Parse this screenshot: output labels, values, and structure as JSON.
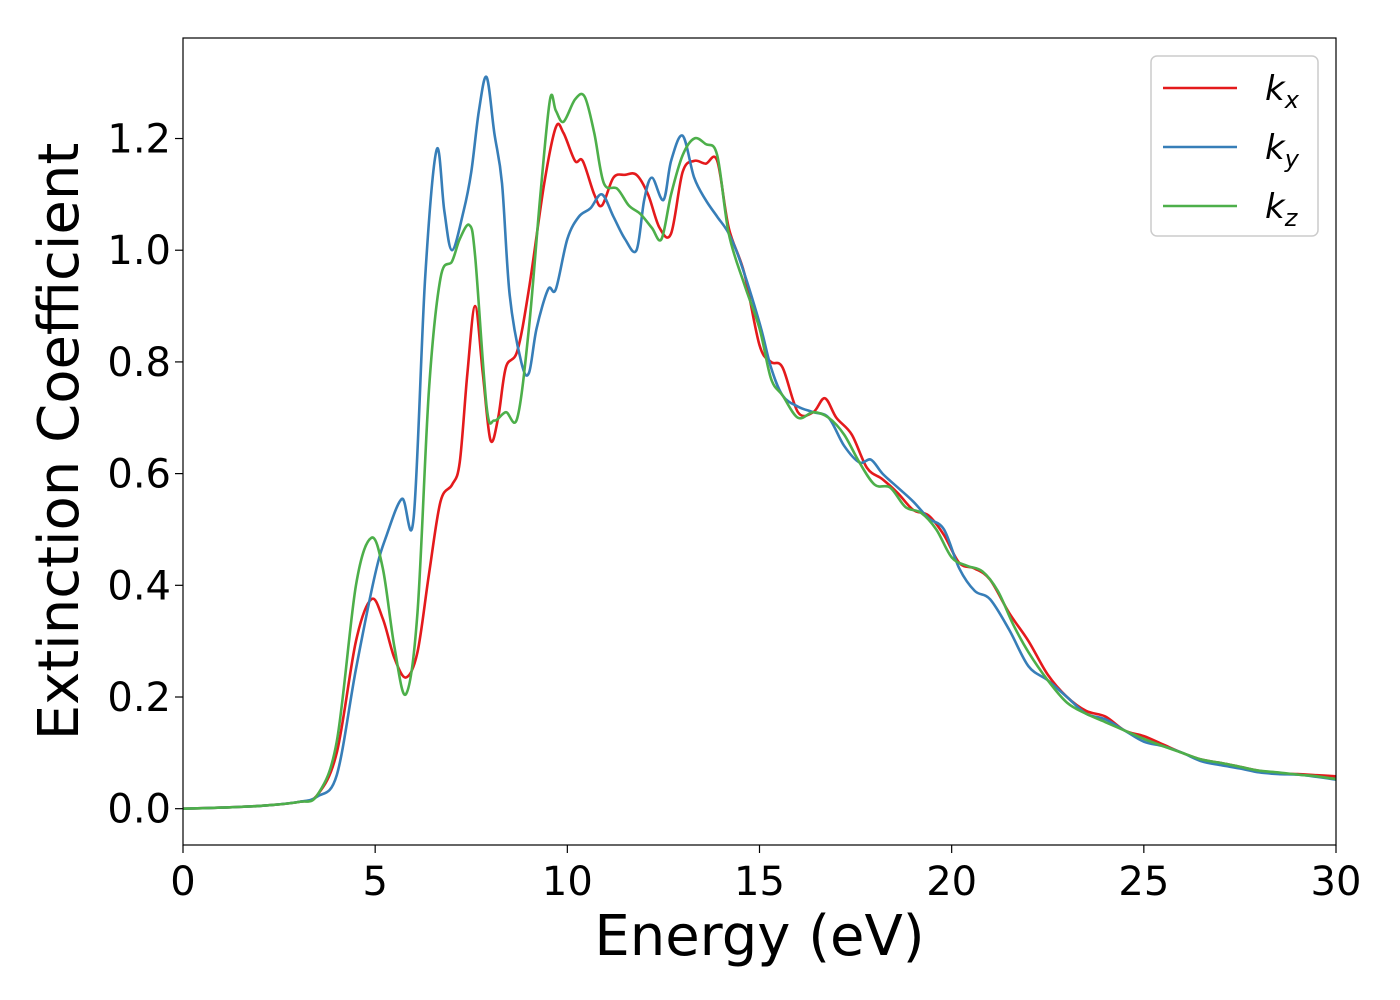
{
  "chart_data": {
    "type": "line",
    "title": "",
    "xlabel": "Energy (eV)",
    "ylabel": "Extinction Coefficient",
    "xlim": [
      0,
      30
    ],
    "ylim": [
      -0.065,
      1.38
    ],
    "xticks": [
      0,
      5,
      10,
      15,
      20,
      25,
      30
    ],
    "xtick_labels": [
      "0",
      "5",
      "10",
      "15",
      "20",
      "25",
      "30"
    ],
    "yticks": [
      0.0,
      0.2,
      0.4,
      0.6,
      0.8,
      1.0,
      1.2
    ],
    "ytick_labels": [
      "0.0",
      "0.2",
      "0.4",
      "0.6",
      "0.8",
      "1.0",
      "1.2"
    ],
    "grid": false,
    "legend": "top-right",
    "series": [
      {
        "name": "k_x",
        "label_main": "k",
        "label_sub": "x",
        "color": "#e41a1c",
        "points": [
          [
            0,
            0
          ],
          [
            1,
            0.002
          ],
          [
            2,
            0.005
          ],
          [
            3,
            0.012
          ],
          [
            3.5,
            0.025
          ],
          [
            4,
            0.1
          ],
          [
            4.5,
            0.3
          ],
          [
            4.9,
            0.375
          ],
          [
            5.2,
            0.34
          ],
          [
            5.5,
            0.27
          ],
          [
            5.8,
            0.235
          ],
          [
            6.1,
            0.28
          ],
          [
            6.4,
            0.42
          ],
          [
            6.7,
            0.55
          ],
          [
            7.0,
            0.58
          ],
          [
            7.2,
            0.62
          ],
          [
            7.4,
            0.78
          ],
          [
            7.6,
            0.9
          ],
          [
            7.8,
            0.78
          ],
          [
            8.0,
            0.66
          ],
          [
            8.2,
            0.7
          ],
          [
            8.4,
            0.79
          ],
          [
            8.7,
            0.82
          ],
          [
            9.0,
            0.93
          ],
          [
            9.4,
            1.12
          ],
          [
            9.7,
            1.22
          ],
          [
            9.9,
            1.21
          ],
          [
            10.2,
            1.16
          ],
          [
            10.4,
            1.16
          ],
          [
            10.7,
            1.1
          ],
          [
            10.9,
            1.08
          ],
          [
            11.2,
            1.13
          ],
          [
            11.5,
            1.135
          ],
          [
            11.8,
            1.135
          ],
          [
            12.1,
            1.1
          ],
          [
            12.4,
            1.04
          ],
          [
            12.7,
            1.03
          ],
          [
            13.0,
            1.14
          ],
          [
            13.3,
            1.16
          ],
          [
            13.6,
            1.155
          ],
          [
            13.9,
            1.16
          ],
          [
            14.2,
            1.04
          ],
          [
            14.6,
            0.96
          ],
          [
            15.0,
            0.83
          ],
          [
            15.3,
            0.8
          ],
          [
            15.6,
            0.79
          ],
          [
            16.0,
            0.71
          ],
          [
            16.4,
            0.71
          ],
          [
            16.7,
            0.735
          ],
          [
            17.0,
            0.7
          ],
          [
            17.4,
            0.67
          ],
          [
            17.8,
            0.61
          ],
          [
            18.2,
            0.59
          ],
          [
            18.6,
            0.565
          ],
          [
            19.0,
            0.535
          ],
          [
            19.4,
            0.525
          ],
          [
            19.8,
            0.49
          ],
          [
            20.2,
            0.44
          ],
          [
            20.6,
            0.43
          ],
          [
            21.0,
            0.41
          ],
          [
            21.5,
            0.35
          ],
          [
            22.0,
            0.3
          ],
          [
            22.5,
            0.24
          ],
          [
            23.0,
            0.2
          ],
          [
            23.5,
            0.175
          ],
          [
            24.0,
            0.165
          ],
          [
            24.5,
            0.14
          ],
          [
            25.0,
            0.13
          ],
          [
            25.5,
            0.115
          ],
          [
            26.0,
            0.1
          ],
          [
            26.5,
            0.088
          ],
          [
            27.0,
            0.082
          ],
          [
            27.5,
            0.075
          ],
          [
            28.0,
            0.068
          ],
          [
            28.5,
            0.063
          ],
          [
            29.0,
            0.062
          ],
          [
            29.5,
            0.06
          ],
          [
            30.0,
            0.058
          ]
        ]
      },
      {
        "name": "k_y",
        "label_main": "k",
        "label_sub": "y",
        "color": "#377eb8",
        "points": [
          [
            0,
            0
          ],
          [
            1,
            0.002
          ],
          [
            2,
            0.005
          ],
          [
            3,
            0.012
          ],
          [
            3.5,
            0.022
          ],
          [
            4,
            0.06
          ],
          [
            4.5,
            0.25
          ],
          [
            5.0,
            0.42
          ],
          [
            5.3,
            0.49
          ],
          [
            5.7,
            0.555
          ],
          [
            6.0,
            0.52
          ],
          [
            6.3,
            0.95
          ],
          [
            6.6,
            1.18
          ],
          [
            6.8,
            1.07
          ],
          [
            7.0,
            1.0
          ],
          [
            7.3,
            1.07
          ],
          [
            7.5,
            1.14
          ],
          [
            7.7,
            1.25
          ],
          [
            7.9,
            1.31
          ],
          [
            8.1,
            1.21
          ],
          [
            8.3,
            1.12
          ],
          [
            8.5,
            0.92
          ],
          [
            8.8,
            0.8
          ],
          [
            9.0,
            0.78
          ],
          [
            9.2,
            0.86
          ],
          [
            9.5,
            0.93
          ],
          [
            9.7,
            0.93
          ],
          [
            10.0,
            1.02
          ],
          [
            10.3,
            1.06
          ],
          [
            10.6,
            1.075
          ],
          [
            10.9,
            1.1
          ],
          [
            11.2,
            1.06
          ],
          [
            11.5,
            1.02
          ],
          [
            11.8,
            1.0
          ],
          [
            12.0,
            1.09
          ],
          [
            12.2,
            1.13
          ],
          [
            12.5,
            1.09
          ],
          [
            12.7,
            1.16
          ],
          [
            13.0,
            1.205
          ],
          [
            13.3,
            1.13
          ],
          [
            13.6,
            1.09
          ],
          [
            13.9,
            1.06
          ],
          [
            14.2,
            1.03
          ],
          [
            14.5,
            0.98
          ],
          [
            15.0,
            0.87
          ],
          [
            15.3,
            0.79
          ],
          [
            15.6,
            0.74
          ],
          [
            16.0,
            0.72
          ],
          [
            16.4,
            0.71
          ],
          [
            16.8,
            0.7
          ],
          [
            17.2,
            0.65
          ],
          [
            17.6,
            0.62
          ],
          [
            17.9,
            0.625
          ],
          [
            18.2,
            0.6
          ],
          [
            18.6,
            0.575
          ],
          [
            19.0,
            0.55
          ],
          [
            19.4,
            0.52
          ],
          [
            19.8,
            0.5
          ],
          [
            20.2,
            0.43
          ],
          [
            20.6,
            0.39
          ],
          [
            21.0,
            0.375
          ],
          [
            21.5,
            0.32
          ],
          [
            22.0,
            0.255
          ],
          [
            22.5,
            0.23
          ],
          [
            23.0,
            0.2
          ],
          [
            23.5,
            0.17
          ],
          [
            24.0,
            0.16
          ],
          [
            24.5,
            0.14
          ],
          [
            25.0,
            0.12
          ],
          [
            25.5,
            0.112
          ],
          [
            26.0,
            0.1
          ],
          [
            26.5,
            0.085
          ],
          [
            27.0,
            0.078
          ],
          [
            27.5,
            0.072
          ],
          [
            28.0,
            0.065
          ],
          [
            28.5,
            0.062
          ],
          [
            29.0,
            0.061
          ],
          [
            29.5,
            0.057
          ],
          [
            30.0,
            0.052
          ]
        ]
      },
      {
        "name": "k_z",
        "label_main": "k",
        "label_sub": "z",
        "color": "#4daf4a",
        "points": [
          [
            0,
            0
          ],
          [
            1,
            0.002
          ],
          [
            2,
            0.005
          ],
          [
            3,
            0.012
          ],
          [
            3.5,
            0.025
          ],
          [
            4,
            0.12
          ],
          [
            4.5,
            0.4
          ],
          [
            4.9,
            0.485
          ],
          [
            5.2,
            0.43
          ],
          [
            5.5,
            0.29
          ],
          [
            5.8,
            0.205
          ],
          [
            6.1,
            0.35
          ],
          [
            6.4,
            0.75
          ],
          [
            6.7,
            0.95
          ],
          [
            7.0,
            0.98
          ],
          [
            7.2,
            1.02
          ],
          [
            7.45,
            1.045
          ],
          [
            7.6,
            0.99
          ],
          [
            7.9,
            0.72
          ],
          [
            8.1,
            0.695
          ],
          [
            8.4,
            0.71
          ],
          [
            8.7,
            0.7
          ],
          [
            9.0,
            0.86
          ],
          [
            9.3,
            1.1
          ],
          [
            9.55,
            1.27
          ],
          [
            9.7,
            1.25
          ],
          [
            9.9,
            1.23
          ],
          [
            10.2,
            1.27
          ],
          [
            10.45,
            1.275
          ],
          [
            10.7,
            1.21
          ],
          [
            10.95,
            1.12
          ],
          [
            11.3,
            1.11
          ],
          [
            11.6,
            1.08
          ],
          [
            11.9,
            1.065
          ],
          [
            12.2,
            1.04
          ],
          [
            12.45,
            1.02
          ],
          [
            12.7,
            1.1
          ],
          [
            13.0,
            1.17
          ],
          [
            13.3,
            1.2
          ],
          [
            13.6,
            1.19
          ],
          [
            13.9,
            1.17
          ],
          [
            14.2,
            1.03
          ],
          [
            14.6,
            0.94
          ],
          [
            15.0,
            0.86
          ],
          [
            15.3,
            0.77
          ],
          [
            15.6,
            0.74
          ],
          [
            16.0,
            0.7
          ],
          [
            16.4,
            0.71
          ],
          [
            16.8,
            0.7
          ],
          [
            17.2,
            0.67
          ],
          [
            17.6,
            0.62
          ],
          [
            18.0,
            0.58
          ],
          [
            18.4,
            0.575
          ],
          [
            18.8,
            0.54
          ],
          [
            19.2,
            0.53
          ],
          [
            19.6,
            0.5
          ],
          [
            20.0,
            0.45
          ],
          [
            20.4,
            0.435
          ],
          [
            20.8,
            0.425
          ],
          [
            21.2,
            0.39
          ],
          [
            21.6,
            0.33
          ],
          [
            22.0,
            0.28
          ],
          [
            22.5,
            0.23
          ],
          [
            23.0,
            0.19
          ],
          [
            23.5,
            0.17
          ],
          [
            24.0,
            0.155
          ],
          [
            24.5,
            0.14
          ],
          [
            25.0,
            0.125
          ],
          [
            25.5,
            0.112
          ],
          [
            26.0,
            0.1
          ],
          [
            26.5,
            0.088
          ],
          [
            27.0,
            0.082
          ],
          [
            27.5,
            0.075
          ],
          [
            28.0,
            0.068
          ],
          [
            28.5,
            0.065
          ],
          [
            29.0,
            0.061
          ],
          [
            29.5,
            0.058
          ],
          [
            30.0,
            0.053
          ]
        ]
      }
    ]
  }
}
